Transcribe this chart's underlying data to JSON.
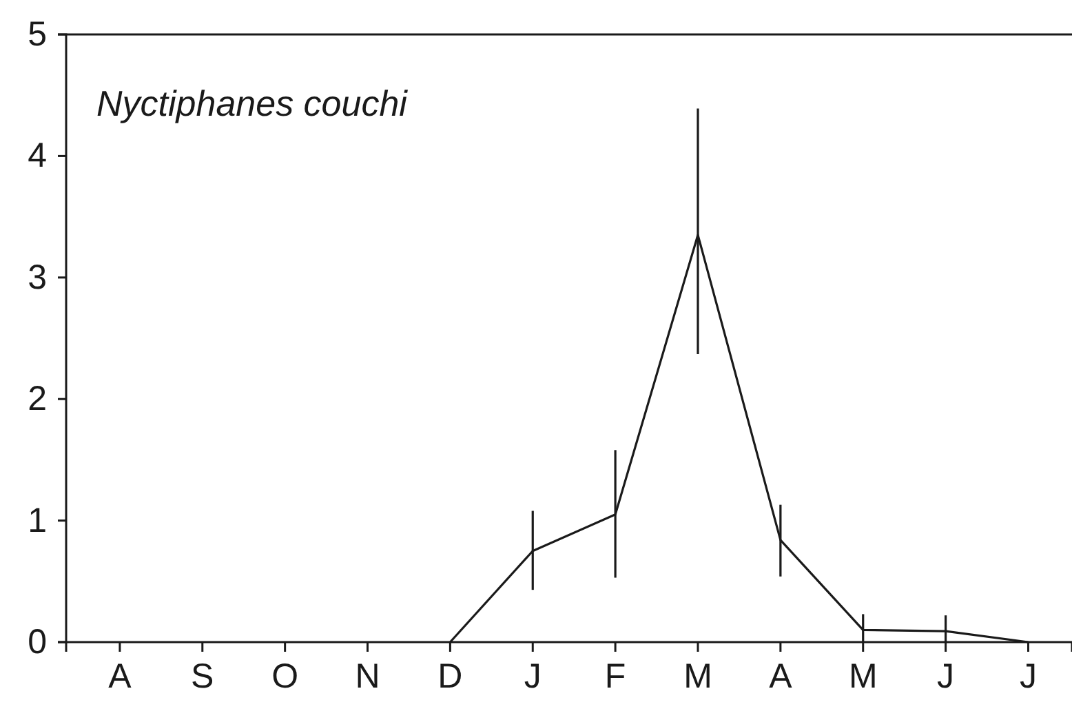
{
  "chart_data": {
    "type": "line",
    "title": "Nyctiphanes couchi",
    "categories": [
      "A",
      "S",
      "O",
      "N",
      "D",
      "J",
      "F",
      "M",
      "A",
      "M",
      "J",
      "J"
    ],
    "series": [
      {
        "color": "#1a1a1a",
        "values": [
          null,
          null,
          null,
          null,
          0,
          0.75,
          1.05,
          3.35,
          0.84,
          0.1,
          0.09,
          0
        ],
        "errors": [
          null,
          null,
          null,
          null,
          null,
          [
            0.43,
            1.08
          ],
          [
            0.53,
            1.58
          ],
          [
            2.37,
            4.39
          ],
          [
            0.54,
            1.13
          ],
          [
            0,
            0.23
          ],
          [
            0,
            0.22
          ],
          null
        ]
      }
    ],
    "ylim": [
      0,
      5
    ],
    "yticks": [
      0,
      1,
      2,
      3,
      4,
      5
    ],
    "grid": false,
    "marker": "none",
    "line_style": "solid"
  }
}
